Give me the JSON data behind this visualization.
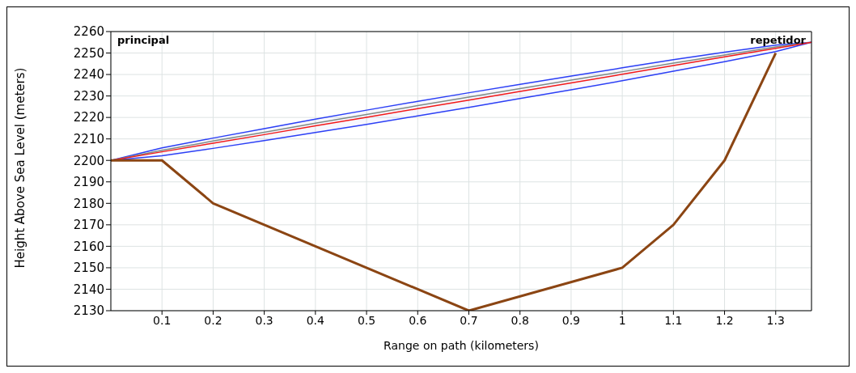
{
  "chart_data": {
    "type": "line",
    "xlabel": "Range on path (kilometers)",
    "ylabel": "Height Above Sea  Level (meters)",
    "annotations": [
      "principal",
      "repetidor"
    ],
    "x": [
      0,
      0.1,
      0.2,
      0.3,
      0.4,
      0.5,
      0.6,
      0.7,
      0.8,
      0.9,
      1.0,
      1.1,
      1.2,
      1.3,
      1.37
    ],
    "series": [
      {
        "color": "#7f8c86",
        "values": [
          2200,
          2204.7,
          2209.0,
          2213.1,
          2217.3,
          2221.4,
          2225.5,
          2229.5,
          2233.4,
          2237.4,
          2241.3,
          2245.3,
          2249.1,
          2252.8,
          2255
        ]
      },
      {
        "color": "#f21a1a",
        "values": [
          2200,
          2204.0,
          2208.0,
          2212.0,
          2216.1,
          2220.1,
          2224.1,
          2228.1,
          2232.1,
          2236.1,
          2240.1,
          2244.2,
          2248.2,
          2252.2,
          2255
        ],
        "upper": [
          2200,
          2205.8,
          2210.4,
          2214.8,
          2219.2,
          2223.4,
          2227.5,
          2231.5,
          2235.4,
          2239.3,
          2243.1,
          2246.9,
          2250.4,
          2253.7,
          2255
        ],
        "lower": [
          2200,
          2202.2,
          2205.6,
          2209.2,
          2213.0,
          2216.8,
          2220.7,
          2224.7,
          2228.8,
          2232.9,
          2237.1,
          2241.5,
          2246.0,
          2250.7,
          2255
        ]
      },
      {
        "color": "#8b4513",
        "x": [
          0,
          0.1,
          0.2,
          0.7,
          1.0,
          1.1,
          1.2,
          1.3
        ],
        "values": [
          2200,
          2200,
          2180,
          2130,
          2150,
          2170,
          2200,
          2250
        ]
      }
    ],
    "xlim": [
      0,
      1.37
    ],
    "xticks": [
      0.1,
      0.2,
      0.3,
      0.4,
      0.5,
      0.6,
      0.7,
      0.8,
      0.9,
      1,
      1.1,
      1.2,
      1.3
    ],
    "ylim": [
      2130,
      2260
    ],
    "yticks": [
      2130,
      2140,
      2150,
      2160,
      2170,
      2180,
      2190,
      2200,
      2210,
      2220,
      2230,
      2240,
      2250,
      2260
    ],
    "grid": true,
    "marker": "none",
    "line_style": "solid"
  }
}
